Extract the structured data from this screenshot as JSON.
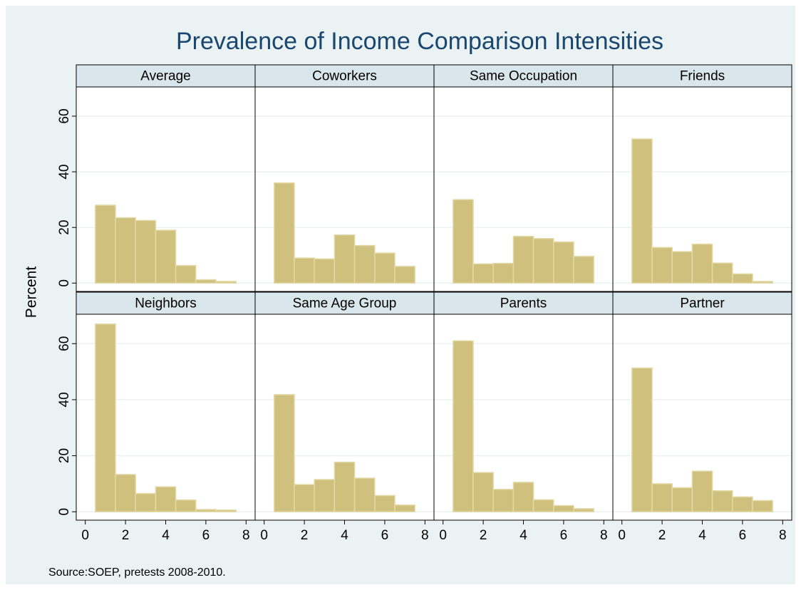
{
  "chart_data": {
    "type": "histogram",
    "title": "Prevalence of Income Comparison Intensities",
    "ylabel": "Percent",
    "note": "Source:SOEP, pretests 2008-2010.",
    "color": "#cfc17d",
    "grid": true,
    "xlim": [
      -0.45,
      8.45
    ],
    "ylim": [
      -3,
      70.5
    ],
    "xticks": [
      0,
      2,
      4,
      6,
      8
    ],
    "yticks": [
      0,
      20,
      40,
      60
    ],
    "bins": [
      0.5,
      1.5,
      2.5,
      3.5,
      4.5,
      5.5,
      6.5,
      7.5
    ],
    "panels": [
      {
        "title": "Average",
        "values": [
          28,
          23.5,
          22.5,
          19,
          6.3,
          1.2,
          0.6
        ]
      },
      {
        "title": "Coworkers",
        "values": [
          36,
          9,
          8.7,
          17.3,
          13.5,
          10.8,
          6
        ]
      },
      {
        "title": "Same Occupation",
        "values": [
          30,
          6.9,
          7.1,
          16.8,
          16,
          14.8,
          9.6
        ]
      },
      {
        "title": "Friends",
        "values": [
          51.8,
          12.8,
          11.3,
          14,
          7.2,
          3.3,
          0.6
        ]
      },
      {
        "title": "Neighbors",
        "values": [
          67,
          13.3,
          6.5,
          8.9,
          4.2,
          0.8,
          0.6
        ]
      },
      {
        "title": "Same Age Group",
        "values": [
          41.8,
          9.7,
          11.5,
          17.7,
          12,
          5.8,
          2.4
        ]
      },
      {
        "title": "Parents",
        "values": [
          61,
          14,
          8,
          10.5,
          4.3,
          2.2,
          1.1
        ]
      },
      {
        "title": "Partner",
        "values": [
          51.3,
          10,
          8.6,
          14.5,
          7.5,
          5.3,
          4
        ]
      }
    ]
  }
}
